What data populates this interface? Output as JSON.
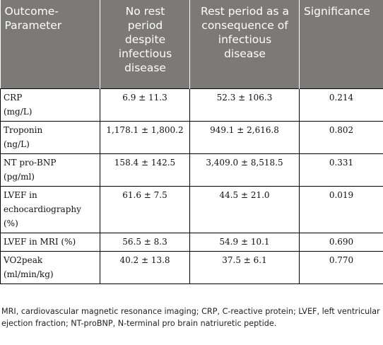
{
  "table": {
    "headers": [
      "Outcome-Parameter",
      "No rest period despite infectious disease",
      "Rest period as a consequence of infectious disease",
      "Significance"
    ],
    "rows": [
      {
        "param": "CRP\n(mg/L)",
        "no_rest": "6.9 ± 11.3",
        "rest": "52.3 ± 106.3",
        "sig": "0.214"
      },
      {
        "param": "Troponin\n(ng/L)",
        "no_rest": "1,178.1 ± 1,800.2",
        "rest": "949.1 ± 2,616.8",
        "sig": "0.802"
      },
      {
        "param": "NT pro-BNP\n(pg/ml)",
        "no_rest": "158.4 ± 142.5",
        "rest": "3,409.0 ± 8,518.5",
        "sig": "0.331"
      },
      {
        "param": "LVEF in\nechocardiography\n(%)",
        "no_rest": "61.6 ± 7.5",
        "rest": "44.5 ± 21.0",
        "sig": "0.019"
      },
      {
        "param": "LVEF in MRI (%)",
        "no_rest": "56.5 ± 8.3",
        "rest": "54.9 ± 10.1",
        "sig": "0.690"
      },
      {
        "param": "VO2peak\n(ml/min/kg)",
        "no_rest": "40.2 ± 13.8",
        "rest": "37.5 ± 6.1",
        "sig": "0.770"
      }
    ]
  },
  "footnote": "MRI, cardiovascular magnetic resonance imaging; CRP, C-reactive protein; LVEF, left ventricular ejection fraction; NT-proBNP, N-terminal pro brain natriuretic peptide."
}
